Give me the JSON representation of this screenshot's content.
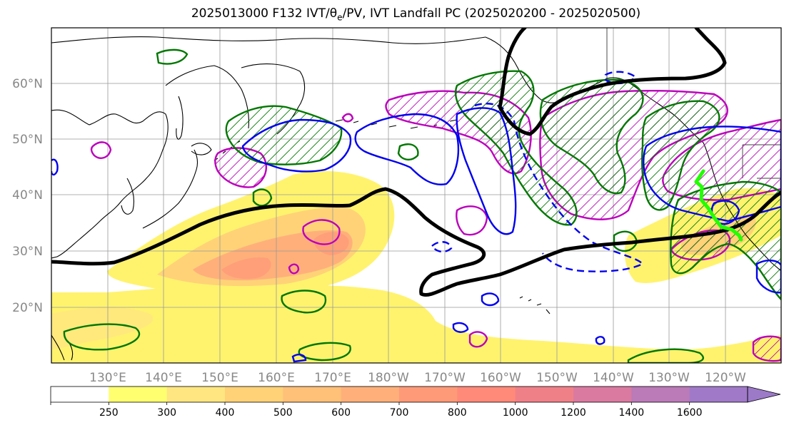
{
  "title": "2025013000 F132 IVT/θe/PV, IVT Landfall PC (2025020200 - 2025020500)",
  "lat_labels": [
    "60°N",
    "50°N",
    "40°N",
    "30°N",
    "20°N"
  ],
  "lon_labels": [
    "130°E",
    "140°E",
    "150°E",
    "160°E",
    "170°E",
    "180°W",
    "170°W",
    "160°W",
    "150°W",
    "140°W",
    "130°W",
    "120°W"
  ],
  "colorbar": {
    "levels": [
      "250",
      "300",
      "400",
      "500",
      "600",
      "700",
      "800",
      "1000",
      "1200",
      "1400",
      "1600"
    ],
    "colors": [
      "#ffffff",
      "#ffff70",
      "#ffe680",
      "#ffd278",
      "#ffc078",
      "#ffb07a",
      "#ff9a78",
      "#ff8a7a",
      "#f08088",
      "#da7aa0",
      "#bb7ab8",
      "#a07ac8"
    ],
    "extend": "max"
  },
  "colors": {
    "ivt_fill_low": "#fff36e",
    "ivt_fill_mid": "#ffc078",
    "ivt_fill_high": "#ff9f7a",
    "theta_e": "#000000",
    "pv_contour": "#0000ee",
    "precip_contour": "#007700",
    "magenta_contour": "#bb00bb",
    "landfall_line": "#22ff00",
    "coast": "#000000",
    "grid": "#999999"
  }
}
